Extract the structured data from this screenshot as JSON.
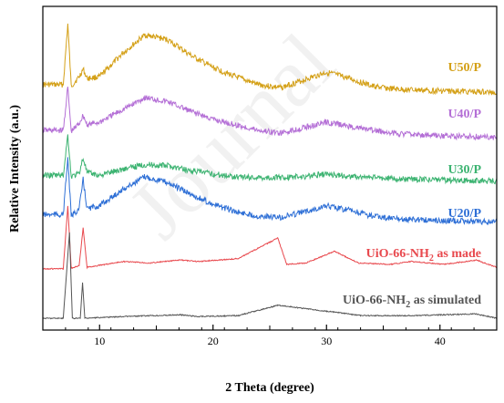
{
  "chart_data": {
    "type": "line",
    "xlabel": "2 Theta (degree)",
    "ylabel": "Relative Intensity (a.u.)",
    "xlim": [
      5,
      45
    ],
    "x_ticks": [
      10,
      20,
      30,
      40
    ],
    "watermark": "Journal",
    "series": [
      {
        "name": "U50/P",
        "label_main": "U50/P",
        "label_sub": "",
        "label_suffix": "",
        "color": "#D4A017",
        "points": [
          [
            5,
            0.12
          ],
          [
            6.8,
            0.12
          ],
          [
            7.2,
            0.9
          ],
          [
            7.5,
            0.1
          ],
          [
            8.2,
            0.22
          ],
          [
            8.55,
            0.32
          ],
          [
            8.9,
            0.2
          ],
          [
            10,
            0.22
          ],
          [
            12,
            0.52
          ],
          [
            14,
            0.76
          ],
          [
            16,
            0.7
          ],
          [
            18,
            0.5
          ],
          [
            20,
            0.34
          ],
          [
            22,
            0.22
          ],
          [
            24,
            0.12
          ],
          [
            26,
            0.08
          ],
          [
            28,
            0.18
          ],
          [
            30,
            0.28
          ],
          [
            32,
            0.2
          ],
          [
            34,
            0.1
          ],
          [
            36,
            0.06
          ],
          [
            40,
            0.04
          ],
          [
            45,
            0.02
          ]
        ]
      },
      {
        "name": "U40/P",
        "label_main": "U40/P",
        "label_sub": "",
        "label_suffix": "",
        "color": "#B46FD6",
        "points": [
          [
            5,
            0.12
          ],
          [
            6.8,
            0.12
          ],
          [
            7.2,
            0.75
          ],
          [
            7.5,
            0.1
          ],
          [
            8.2,
            0.22
          ],
          [
            8.55,
            0.34
          ],
          [
            8.9,
            0.2
          ],
          [
            10,
            0.24
          ],
          [
            12,
            0.42
          ],
          [
            14,
            0.6
          ],
          [
            16,
            0.54
          ],
          [
            18,
            0.4
          ],
          [
            20,
            0.28
          ],
          [
            22,
            0.2
          ],
          [
            24,
            0.12
          ],
          [
            26,
            0.08
          ],
          [
            28,
            0.16
          ],
          [
            30,
            0.24
          ],
          [
            32,
            0.18
          ],
          [
            34,
            0.12
          ],
          [
            36,
            0.08
          ],
          [
            40,
            0.04
          ],
          [
            45,
            0.02
          ]
        ]
      },
      {
        "name": "U30/P",
        "label_main": "U30/P",
        "label_sub": "",
        "label_suffix": "",
        "color": "#3CB371",
        "points": [
          [
            5,
            0.12
          ],
          [
            6.8,
            0.12
          ],
          [
            7.2,
            0.8
          ],
          [
            7.5,
            0.1
          ],
          [
            8.2,
            0.15
          ],
          [
            8.55,
            0.42
          ],
          [
            8.9,
            0.16
          ],
          [
            10,
            0.12
          ],
          [
            12,
            0.22
          ],
          [
            14,
            0.3
          ],
          [
            16,
            0.28
          ],
          [
            18,
            0.2
          ],
          [
            20,
            0.14
          ],
          [
            22,
            0.1
          ],
          [
            24,
            0.08
          ],
          [
            26,
            0.08
          ],
          [
            28,
            0.1
          ],
          [
            30,
            0.14
          ],
          [
            32,
            0.1
          ],
          [
            34,
            0.08
          ],
          [
            36,
            0.06
          ],
          [
            40,
            0.04
          ],
          [
            45,
            0.02
          ]
        ]
      },
      {
        "name": "U20/P",
        "label_main": "U20/P",
        "label_sub": "",
        "label_suffix": "",
        "color": "#2E6FD6",
        "points": [
          [
            5,
            0.12
          ],
          [
            6.8,
            0.12
          ],
          [
            7.2,
            0.9
          ],
          [
            7.5,
            0.1
          ],
          [
            8.2,
            0.2
          ],
          [
            8.55,
            0.6
          ],
          [
            8.9,
            0.2
          ],
          [
            10,
            0.24
          ],
          [
            12,
            0.46
          ],
          [
            14,
            0.64
          ],
          [
            16,
            0.56
          ],
          [
            18,
            0.4
          ],
          [
            20,
            0.26
          ],
          [
            22,
            0.16
          ],
          [
            24,
            0.1
          ],
          [
            26,
            0.08
          ],
          [
            28,
            0.16
          ],
          [
            30,
            0.24
          ],
          [
            32,
            0.18
          ],
          [
            34,
            0.1
          ],
          [
            36,
            0.06
          ],
          [
            40,
            0.04
          ],
          [
            45,
            0.02
          ]
        ]
      },
      {
        "name": "UiO-66-NH2 as made",
        "label_main": "UiO-66-NH",
        "label_sub": "2",
        "label_suffix": " as made",
        "color": "#E8484D",
        "points": [
          [
            5,
            0.04
          ],
          [
            6.8,
            0.04
          ],
          [
            7.2,
            0.9
          ],
          [
            7.5,
            0.05
          ],
          [
            8.2,
            0.08
          ],
          [
            8.55,
            0.6
          ],
          [
            8.9,
            0.06
          ],
          [
            12.1,
            0.14
          ],
          [
            14.5,
            0.12
          ],
          [
            17.1,
            0.16
          ],
          [
            18.7,
            0.14
          ],
          [
            22.2,
            0.18
          ],
          [
            25.7,
            0.46
          ],
          [
            26.5,
            0.1
          ],
          [
            28.2,
            0.12
          ],
          [
            30.7,
            0.28
          ],
          [
            32.8,
            0.12
          ],
          [
            35.6,
            0.1
          ],
          [
            37.5,
            0.14
          ],
          [
            40.4,
            0.1
          ],
          [
            43.2,
            0.16
          ],
          [
            45,
            0.06
          ]
        ]
      },
      {
        "name": "UiO-66-NH2 as simulated",
        "label_main": "UiO-66-NH",
        "label_sub": "2",
        "label_suffix": " as simulated",
        "color": "#555555",
        "points": [
          [
            5,
            0.01
          ],
          [
            6.8,
            0.01
          ],
          [
            7.35,
            1.0
          ],
          [
            7.6,
            0.01
          ],
          [
            8.3,
            0.01
          ],
          [
            8.5,
            0.42
          ],
          [
            8.7,
            0.01
          ],
          [
            12.1,
            0.03
          ],
          [
            14.7,
            0.04
          ],
          [
            17.1,
            0.05
          ],
          [
            18.7,
            0.03
          ],
          [
            22.2,
            0.04
          ],
          [
            25.7,
            0.16
          ],
          [
            30.7,
            0.08
          ],
          [
            33.1,
            0.04
          ],
          [
            37.5,
            0.04
          ],
          [
            43.2,
            0.06
          ],
          [
            45,
            0.01
          ]
        ]
      }
    ]
  }
}
